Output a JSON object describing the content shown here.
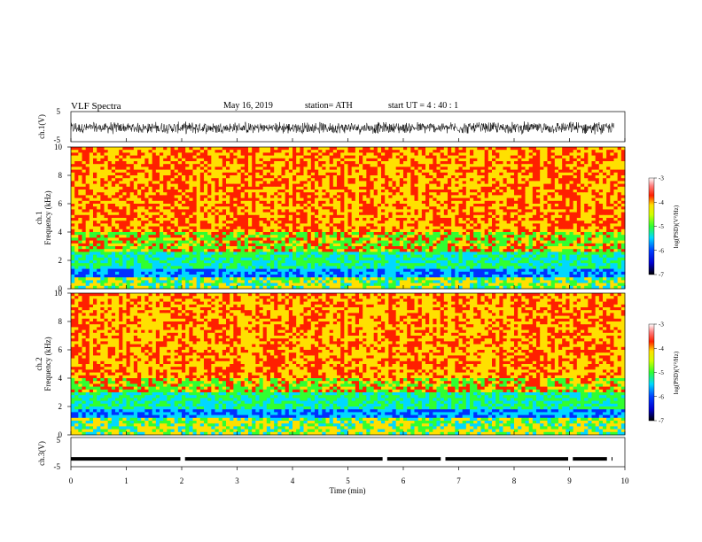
{
  "header": {
    "title": "VLF  Spectra",
    "date": "May 16, 2019",
    "station": "station= ATH",
    "start": "start  UT  =   4  : 40 : 1"
  },
  "chart_data": [
    {
      "id": "ch1-waveform",
      "type": "line",
      "ylabel": "ch.1(V)",
      "ylim": [
        -5,
        5
      ],
      "yticks": [
        5,
        -5
      ],
      "xlim": [
        0,
        10
      ],
      "color": "#000000"
    },
    {
      "id": "ch1-spectrogram",
      "type": "heatmap",
      "ylabel_line1": "ch.1",
      "ylabel_line2": "Frequency  (kHz)",
      "ylim": [
        0,
        10
      ],
      "yticks": [
        0,
        2,
        4,
        6,
        8,
        10
      ],
      "xlim": [
        0,
        10
      ],
      "colorbar": {
        "label": "log(PSD)(V²/Hz)",
        "ticks": [
          -3,
          -4,
          -5,
          -6,
          -7
        ],
        "range": [
          -7,
          -3
        ]
      }
    },
    {
      "id": "ch2-spectrogram",
      "type": "heatmap",
      "ylabel_line1": "ch.2",
      "ylabel_line2": "Frequency  (kHz)",
      "ylim": [
        0,
        10
      ],
      "yticks": [
        0,
        2,
        4,
        6,
        8,
        10
      ],
      "xlim": [
        0,
        10
      ],
      "colorbar": {
        "label": "log(PSD)(V²/Hz)",
        "ticks": [
          -3,
          -4,
          -5,
          -6,
          -7
        ],
        "range": [
          -7,
          -3
        ]
      }
    },
    {
      "id": "ch3-waveform",
      "type": "line",
      "ylabel": "ch.3(V)",
      "ylim": [
        -5,
        5
      ],
      "yticks": [
        5,
        -5
      ],
      "xlim": [
        0,
        10
      ],
      "level": -2.3,
      "gaps": [
        2.0,
        5.65,
        6.7,
        9.0,
        9.7
      ],
      "end": 9.8
    }
  ],
  "xaxis": {
    "label": "Time  (min)",
    "ticks": [
      "0",
      "1",
      "2",
      "3",
      "4",
      "5",
      "6",
      "7",
      "8",
      "9",
      "10"
    ]
  },
  "colors": {
    "red": "#ff2000",
    "yellow": "#ffe000",
    "green": "#30ff30",
    "cyan": "#00d8ff",
    "blue": "#0030ff"
  }
}
